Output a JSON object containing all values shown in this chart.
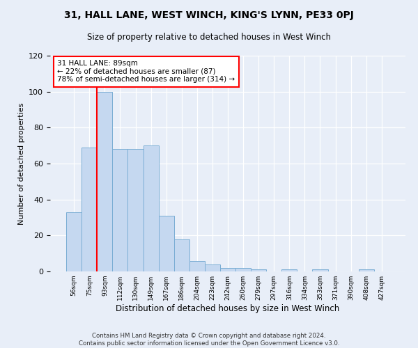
{
  "title": "31, HALL LANE, WEST WINCH, KING'S LYNN, PE33 0PJ",
  "subtitle": "Size of property relative to detached houses in West Winch",
  "xlabel": "Distribution of detached houses by size in West Winch",
  "ylabel": "Number of detached properties",
  "bar_color": "#c5d8f0",
  "bar_edge_color": "#7aadd4",
  "categories": [
    "56sqm",
    "75sqm",
    "93sqm",
    "112sqm",
    "130sqm",
    "149sqm",
    "167sqm",
    "186sqm",
    "204sqm",
    "223sqm",
    "242sqm",
    "260sqm",
    "279sqm",
    "297sqm",
    "316sqm",
    "334sqm",
    "353sqm",
    "371sqm",
    "390sqm",
    "408sqm",
    "427sqm"
  ],
  "values": [
    33,
    69,
    100,
    68,
    68,
    70,
    31,
    18,
    6,
    4,
    2,
    2,
    1,
    0,
    1,
    0,
    1,
    0,
    0,
    1,
    0
  ],
  "ylim": [
    0,
    120
  ],
  "yticks": [
    0,
    20,
    40,
    60,
    80,
    100,
    120
  ],
  "red_line_x": 1.5,
  "annotation_text": "31 HALL LANE: 89sqm\n← 22% of detached houses are smaller (87)\n78% of semi-detached houses are larger (314) →",
  "footnote_line1": "Contains HM Land Registry data © Crown copyright and database right 2024.",
  "footnote_line2": "Contains public sector information licensed under the Open Government Licence v3.0.",
  "background_color": "#e8eef8"
}
